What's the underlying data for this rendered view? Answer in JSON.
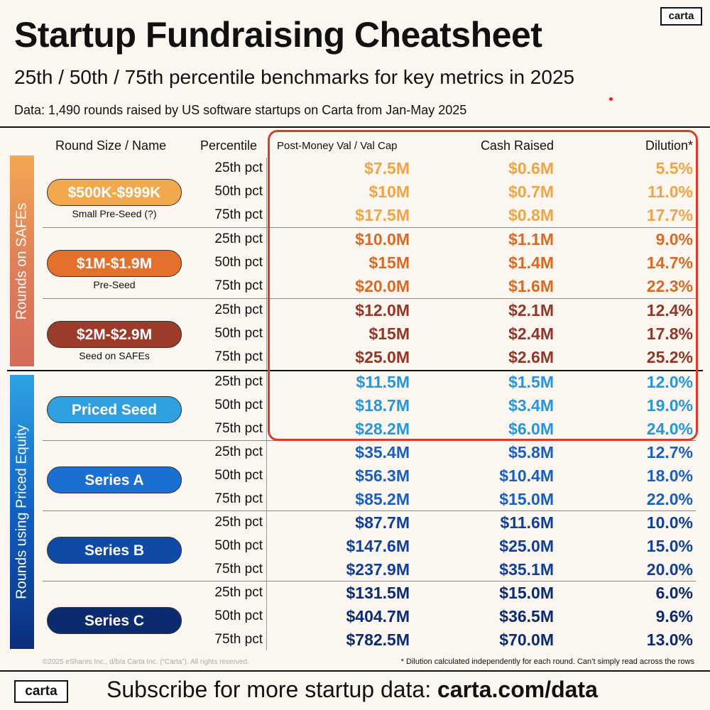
{
  "logo": "carta",
  "title": "Startup Fundraising Cheatsheet",
  "subtitle": "25th / 50th / 75th percentile benchmarks for key metrics in 2025",
  "data_note": "Data: 1,490 rounds raised by US software startups on Carta from Jan-May 2025",
  "headers": {
    "round": "Round Size / Name",
    "percentile": "Percentile",
    "post_money": "Post-Money Val / Val Cap",
    "cash": "Cash Raised",
    "dilution": "Dilution*"
  },
  "side_labels": {
    "safes": "Rounds on SAFEs",
    "priced": "Rounds using Priced Equity"
  },
  "groups": [
    {
      "name": "$500K-$999K",
      "sub": "Small Pre-Seed (?)",
      "color": "#f2a94e",
      "text_color": "#f0a448",
      "rows": [
        {
          "pct": "25th pct",
          "post": "$7.5M",
          "cash": "$0.6M",
          "dil": "5.5%"
        },
        {
          "pct": "50th pct",
          "post": "$10M",
          "cash": "$0.7M",
          "dil": "11.0%"
        },
        {
          "pct": "75th pct",
          "post": "$17.5M",
          "cash": "$0.8M",
          "dil": "17.7%"
        }
      ]
    },
    {
      "name": "$1M-$1.9M",
      "sub": "Pre-Seed",
      "color": "#e4712b",
      "text_color": "#d86a24",
      "rows": [
        {
          "pct": "25th pct",
          "post": "$10.0M",
          "cash": "$1.1M",
          "dil": "9.0%"
        },
        {
          "pct": "50th pct",
          "post": "$15M",
          "cash": "$1.4M",
          "dil": "14.7%"
        },
        {
          "pct": "75th pct",
          "post": "$20.0M",
          "cash": "$1.6M",
          "dil": "22.3%"
        }
      ]
    },
    {
      "name": "$2M-$2.9M",
      "sub": "Seed on SAFEs",
      "color": "#9a3b2c",
      "text_color": "#923628",
      "rows": [
        {
          "pct": "25th pct",
          "post": "$12.0M",
          "cash": "$2.1M",
          "dil": "12.4%"
        },
        {
          "pct": "50th pct",
          "post": "$15M",
          "cash": "$2.4M",
          "dil": "17.8%"
        },
        {
          "pct": "75th pct",
          "post": "$25.0M",
          "cash": "$2.6M",
          "dil": "25.2%"
        }
      ]
    },
    {
      "name": "Priced Seed",
      "sub": "",
      "color": "#2f9fe0",
      "text_color": "#2496d9",
      "rows": [
        {
          "pct": "25th pct",
          "post": "$11.5M",
          "cash": "$1.5M",
          "dil": "12.0%"
        },
        {
          "pct": "50th pct",
          "post": "$18.7M",
          "cash": "$3.4M",
          "dil": "19.0%"
        },
        {
          "pct": "75th pct",
          "post": "$28.2M",
          "cash": "$6.0M",
          "dil": "24.0%"
        }
      ]
    },
    {
      "name": "Series A",
      "sub": "",
      "color": "#1a6fd1",
      "text_color": "#1a5fc0",
      "rows": [
        {
          "pct": "25th pct",
          "post": "$35.4M",
          "cash": "$5.8M",
          "dil": "12.7%"
        },
        {
          "pct": "50th pct",
          "post": "$56.3M",
          "cash": "$10.4M",
          "dil": "18.0%"
        },
        {
          "pct": "75th pct",
          "post": "$85.2M",
          "cash": "$15.0M",
          "dil": "22.0%"
        }
      ]
    },
    {
      "name": "Series B",
      "sub": "",
      "color": "#0f4aa6",
      "text_color": "#0f3f96",
      "rows": [
        {
          "pct": "25th pct",
          "post": "$87.7M",
          "cash": "$11.6M",
          "dil": "10.0%"
        },
        {
          "pct": "50th pct",
          "post": "$147.6M",
          "cash": "$25.0M",
          "dil": "15.0%"
        },
        {
          "pct": "75th pct",
          "post": "$237.9M",
          "cash": "$35.1M",
          "dil": "20.0%"
        }
      ]
    },
    {
      "name": "Series C",
      "sub": "",
      "color": "#0c2a70",
      "text_color": "#0c2a70",
      "rows": [
        {
          "pct": "25th pct",
          "post": "$131.5M",
          "cash": "$15.0M",
          "dil": "6.0%"
        },
        {
          "pct": "50th pct",
          "post": "$404.7M",
          "cash": "$36.5M",
          "dil": "9.6%"
        },
        {
          "pct": "75th pct",
          "post": "$782.5M",
          "cash": "$70.0M",
          "dil": "13.0%"
        }
      ]
    }
  ],
  "copyright": "©2025 eShares Inc., d/b/a Carta Inc. (“Carta”). All rights reserved.",
  "footnote": "* Dilution calculated independently for each round. Can’t simply read across the rows",
  "subscribe_prefix": "Subscribe for more startup data: ",
  "subscribe_link": "carta.com/data"
}
